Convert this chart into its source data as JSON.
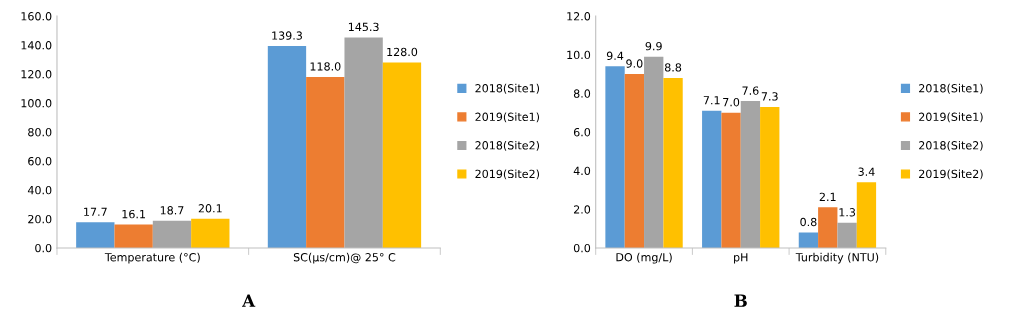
{
  "chart_data": [
    {
      "type": "bar",
      "xlabel": "A",
      "categories": [
        "Temperature (°C)",
        "SC(μs/cm)@ 25° C"
      ],
      "ylim": [
        0,
        160
      ],
      "yticks": [
        {
          "value": 0,
          "label": "0.0"
        },
        {
          "value": 20,
          "label": "20.0"
        },
        {
          "value": 40,
          "label": "40.0"
        },
        {
          "value": 60,
          "label": "60.0"
        },
        {
          "value": 80,
          "label": "80.0"
        },
        {
          "value": 100,
          "label": "100.0"
        },
        {
          "value": 120,
          "label": "120.0"
        },
        {
          "value": 140,
          "label": "140.0"
        },
        {
          "value": 160,
          "label": "160.0"
        }
      ],
      "grid": false,
      "legend": "right",
      "series": [
        {
          "name": "2018(Site1)",
          "color": "#5b9bd5",
          "values": [
            17.7,
            139.3
          ],
          "value_labels": [
            "17.7",
            "139.3"
          ]
        },
        {
          "name": "2019(Site1)",
          "color": "#ed7d31",
          "values": [
            16.1,
            118.0
          ],
          "value_labels": [
            "16.1",
            "118.0"
          ]
        },
        {
          "name": "2018(Site2)",
          "color": "#a5a5a5",
          "values": [
            18.7,
            145.3
          ],
          "value_labels": [
            "18.7",
            "145.3"
          ]
        },
        {
          "name": "2019(Site2)",
          "color": "#ffc000",
          "values": [
            20.1,
            128.0
          ],
          "value_labels": [
            "20.1",
            "128.0"
          ]
        }
      ]
    },
    {
      "type": "bar",
      "xlabel": "B",
      "categories": [
        "DO (mg/L)",
        "pH",
        "Turbidity (NTU)"
      ],
      "ylim": [
        0,
        12
      ],
      "yticks": [
        {
          "value": 0,
          "label": "0.0"
        },
        {
          "value": 2,
          "label": "2.0"
        },
        {
          "value": 4,
          "label": "4.0"
        },
        {
          "value": 6,
          "label": "6.0"
        },
        {
          "value": 8,
          "label": "8.0"
        },
        {
          "value": 10,
          "label": "10.0"
        },
        {
          "value": 12,
          "label": "12.0"
        }
      ],
      "grid": false,
      "legend": "right",
      "series": [
        {
          "name": "2018(Site1)",
          "color": "#5b9bd5",
          "values": [
            9.4,
            7.1,
            0.8
          ],
          "value_labels": [
            "9.4",
            "7.1",
            "0.8"
          ]
        },
        {
          "name": "2019(Site1)",
          "color": "#ed7d31",
          "values": [
            9.0,
            7.0,
            2.1
          ],
          "value_labels": [
            "9.0",
            "7.0",
            "2.1"
          ]
        },
        {
          "name": "2018(Site2)",
          "color": "#a5a5a5",
          "values": [
            9.9,
            7.6,
            1.3
          ],
          "value_labels": [
            "9.9",
            "7.6",
            "1.3"
          ]
        },
        {
          "name": "2019(Site2)",
          "color": "#ffc000",
          "values": [
            8.8,
            7.3,
            3.4
          ],
          "value_labels": [
            "8.8",
            "7.3",
            "3.4"
          ]
        }
      ]
    }
  ]
}
